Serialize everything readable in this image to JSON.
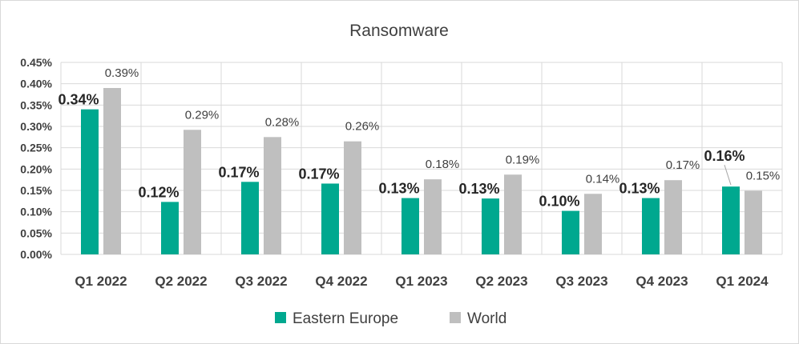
{
  "chart_data": {
    "type": "bar",
    "title": "Ransomware",
    "categories": [
      "Q1 2022",
      "Q2 2022",
      "Q3 2022",
      "Q4 2022",
      "Q1 2023",
      "Q2 2023",
      "Q3 2023",
      "Q4 2023",
      "Q1 2024"
    ],
    "series": [
      {
        "name": "Eastern Europe",
        "color": "#00a88f",
        "values": [
          0.34,
          0.123,
          0.17,
          0.166,
          0.132,
          0.131,
          0.102,
          0.132,
          0.159
        ],
        "labels": [
          "0.34%",
          "0.12%",
          "0.17%",
          "0.17%",
          "0.13%",
          "0.13%",
          "0.10%",
          "0.13%",
          "0.16%"
        ]
      },
      {
        "name": "World",
        "color": "#bfbfbf",
        "values": [
          0.39,
          0.292,
          0.275,
          0.265,
          0.176,
          0.187,
          0.142,
          0.174,
          0.149
        ],
        "labels": [
          "0.39%",
          "0.29%",
          "0.28%",
          "0.26%",
          "0.18%",
          "0.19%",
          "0.14%",
          "0.17%",
          "0.15%"
        ]
      }
    ],
    "ylim": [
      0,
      0.45
    ],
    "yticks": [
      0,
      0.05,
      0.1,
      0.15,
      0.2,
      0.25,
      0.3,
      0.35,
      0.4,
      0.45
    ],
    "ytick_labels": [
      "0.00%",
      "0.05%",
      "0.10%",
      "0.15%",
      "0.20%",
      "0.25%",
      "0.30%",
      "0.35%",
      "0.40%",
      "0.45%"
    ],
    "grid": true,
    "legend": "bottom"
  }
}
